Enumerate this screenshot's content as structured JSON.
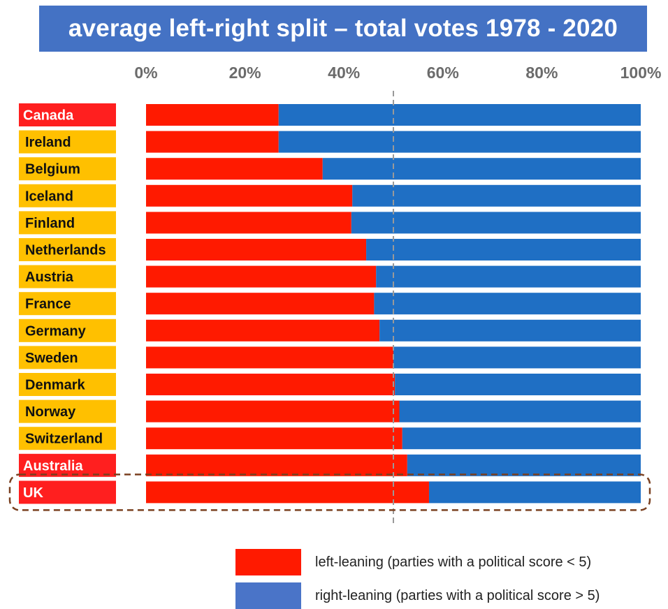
{
  "colors": {
    "left": "#ff1a00",
    "right": "#1f6fc4",
    "label_red": "#ff1f1f",
    "label_yellow": "#ffc000",
    "title_bg": "#4472c4",
    "legend_right": "#4a74c8",
    "highlight_border": "#7a4020",
    "midline": "#999999"
  },
  "chart_data": {
    "type": "bar",
    "orientation": "horizontal",
    "stacked": "percent",
    "title": "average left-right split – total votes 1978 - 2020",
    "xlim": [
      0,
      100
    ],
    "x_ticks": [
      "0%",
      "20%",
      "40%",
      "60%",
      "80%",
      "100%"
    ],
    "reference_line": 50,
    "categories": [
      "Canada",
      "Ireland",
      "Belgium",
      "Iceland",
      "Finland",
      "Netherlands",
      "Austria",
      "France",
      "Germany",
      "Sweden",
      "Denmark",
      "Norway",
      "Switzerland",
      "Australia",
      "UK"
    ],
    "label_colors": [
      "red",
      "yellow",
      "yellow",
      "yellow",
      "yellow",
      "yellow",
      "yellow",
      "yellow",
      "yellow",
      "yellow",
      "yellow",
      "yellow",
      "yellow",
      "red",
      "red"
    ],
    "highlighted_category": "UK",
    "series": [
      {
        "name": "left-leaning (parties with a political score < 5)",
        "values": [
          26.8,
          26.8,
          35.7,
          41.7,
          41.5,
          44.5,
          46.5,
          46.1,
          47.2,
          50.0,
          50.3,
          51.2,
          51.8,
          52.8,
          57.2
        ]
      },
      {
        "name": "right-leaning (parties with a political score > 5)",
        "values": [
          73.2,
          73.2,
          64.3,
          58.3,
          58.5,
          55.5,
          53.5,
          53.9,
          52.8,
          50.0,
          49.7,
          48.8,
          48.2,
          47.2,
          42.8
        ]
      }
    ],
    "legend": "bottom-right"
  }
}
